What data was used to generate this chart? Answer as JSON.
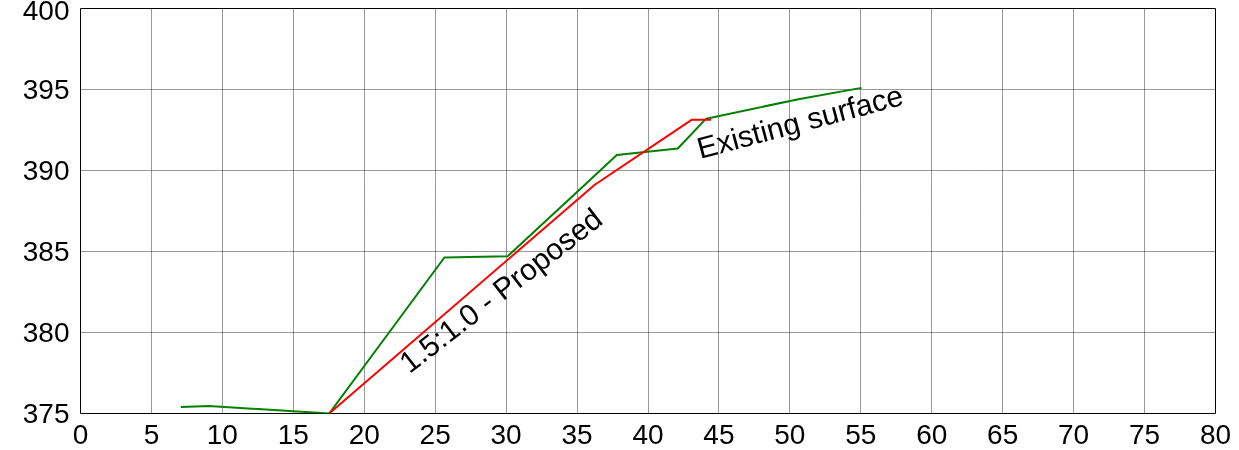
{
  "chart_data": {
    "type": "line",
    "xlim": [
      0,
      80
    ],
    "ylim": [
      375,
      400
    ],
    "xticks": [
      0,
      5,
      10,
      15,
      20,
      25,
      30,
      35,
      40,
      45,
      50,
      55,
      60,
      65,
      70,
      75,
      80
    ],
    "yticks": [
      375,
      380,
      385,
      390,
      395,
      400
    ],
    "grid": true,
    "legend": false,
    "marker": "none",
    "line_style": "solid",
    "series": [
      {
        "name": "Existing surface",
        "color": "#008000",
        "x": [
          7.07,
          9.05,
          17.53,
          25.65,
          30.1,
          35.55,
          37.8,
          42.1,
          44.1,
          50.6,
          55.05
        ],
        "values": [
          375.4,
          375.46,
          375.0,
          384.63,
          384.7,
          389.12,
          390.96,
          391.36,
          393.2,
          394.4,
          395.1
        ]
      },
      {
        "name": "1.5:1.0 - Proposed",
        "color": "#ff0000",
        "x": [
          17.53,
          36.25,
          43.1,
          44.45
        ],
        "values": [
          375.0,
          389.12,
          393.14,
          393.14
        ]
      }
    ]
  }
}
